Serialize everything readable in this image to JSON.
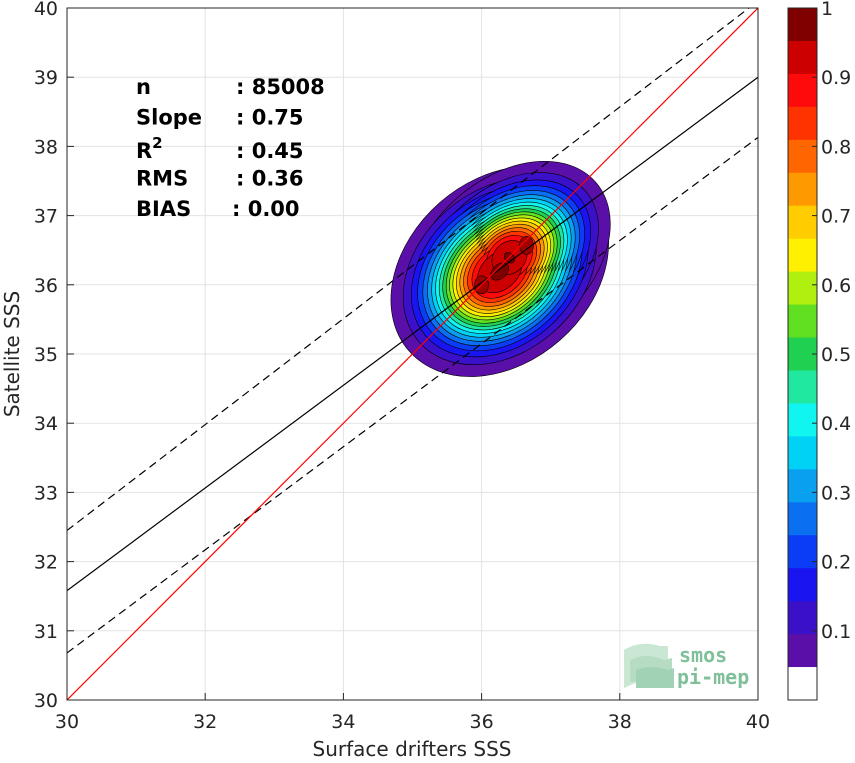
{
  "chart_data": {
    "type": "scatter",
    "subtype": "density contour (normalized 0-1) with regression and 1:1 lines",
    "xlabel": "Surface drifters SSS",
    "ylabel": "Satellite SSS",
    "xlim": [
      30,
      40
    ],
    "ylim": [
      30,
      40
    ],
    "xticks": [
      "30",
      "32",
      "34",
      "36",
      "38",
      "40"
    ],
    "yticks": [
      "30",
      "31",
      "32",
      "33",
      "34",
      "35",
      "36",
      "37",
      "38",
      "39",
      "40"
    ],
    "grid": true,
    "stats": [
      {
        "label": "n",
        "value": ": 85008"
      },
      {
        "label": "Slope",
        "value": ": 0.75"
      },
      {
        "label": "R",
        "sup": "2",
        "value": ": 0.45"
      },
      {
        "label": "RMS",
        "value": ": 0.36"
      },
      {
        "label": "BIAS",
        "value": ": 0.00"
      }
    ],
    "lines": {
      "one_to_one": {
        "x": [
          30,
          40
        ],
        "y": [
          30,
          40
        ],
        "color": "#ff0000"
      },
      "regression": {
        "x": [
          30,
          40
        ],
        "y": [
          31.58,
          39.0
        ],
        "color": "#000000"
      },
      "upper_bound": {
        "x": [
          30,
          40
        ],
        "y": [
          32.45,
          40.1
        ],
        "color": "#000000",
        "style": "dashed"
      },
      "lower_bound": {
        "x": [
          30,
          40
        ],
        "y": [
          30.68,
          38.13
        ],
        "color": "#000000",
        "style": "dashed"
      }
    },
    "density_peaks": [
      {
        "x": 36.0,
        "y": 36.0,
        "value": 1.0
      },
      {
        "x": 36.65,
        "y": 36.57,
        "value": 1.0
      }
    ],
    "colorbar": {
      "range": [
        0,
        1
      ],
      "ticks": [
        "0.1",
        "0.2",
        "0.3",
        "0.4",
        "0.5",
        "0.6",
        "0.7",
        "0.8",
        "0.9",
        "1"
      ],
      "colors": [
        "#ffffff",
        "#5a0fa8",
        "#3a10c8",
        "#1a14f0",
        "#0a3df5",
        "#0a6ff0",
        "#0aa0f0",
        "#00d2f5",
        "#10f5f0",
        "#20e8a0",
        "#20d050",
        "#60e020",
        "#b0f010",
        "#fff000",
        "#ffcc00",
        "#ff9900",
        "#ff6600",
        "#ff3300",
        "#ff0a0a",
        "#cc0000",
        "#800000"
      ]
    },
    "logo": {
      "line1": "smos",
      "line2": "pi-mep"
    }
  }
}
